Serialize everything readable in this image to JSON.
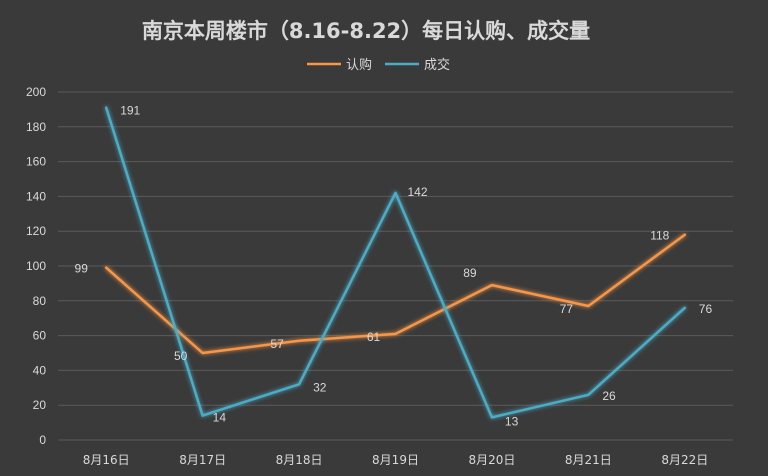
{
  "chart_data": {
    "type": "line",
    "title": "南京本周楼市（8.16-8.22）每日认购、成交量",
    "categories": [
      "8月16日",
      "8月17日",
      "8月18日",
      "8月19日",
      "8月20日",
      "8月21日",
      "8月22日"
    ],
    "series": [
      {
        "name": "认购",
        "color": "#f79646",
        "values": [
          99,
          50,
          57,
          61,
          89,
          77,
          118
        ]
      },
      {
        "name": "成交",
        "color": "#4bacc6",
        "values": [
          191,
          14,
          32,
          142,
          13,
          26,
          76
        ]
      }
    ],
    "yticks": [
      "0",
      "20",
      "40",
      "60",
      "80",
      "100",
      "120",
      "140",
      "160",
      "180",
      "200"
    ],
    "ylim": [
      0,
      200
    ],
    "grid": true,
    "legend": "top-center"
  }
}
